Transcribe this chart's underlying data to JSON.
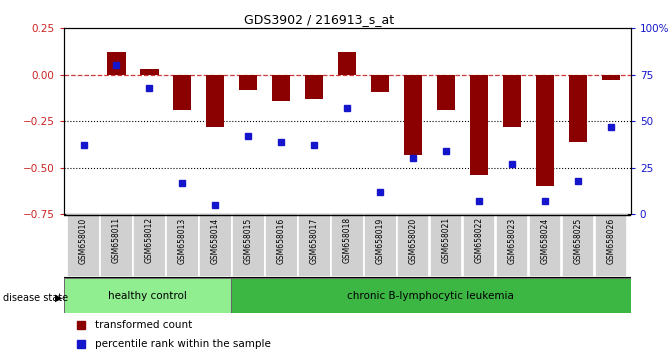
{
  "title": "GDS3902 / 216913_s_at",
  "samples": [
    "GSM658010",
    "GSM658011",
    "GSM658012",
    "GSM658013",
    "GSM658014",
    "GSM658015",
    "GSM658016",
    "GSM658017",
    "GSM658018",
    "GSM658019",
    "GSM658020",
    "GSM658021",
    "GSM658022",
    "GSM658023",
    "GSM658024",
    "GSM658025",
    "GSM658026"
  ],
  "bar_values": [
    0.0,
    0.12,
    0.03,
    -0.19,
    -0.28,
    -0.08,
    -0.14,
    -0.13,
    0.12,
    -0.09,
    -0.43,
    -0.19,
    -0.54,
    -0.28,
    -0.6,
    -0.36,
    -0.03
  ],
  "blue_values": [
    -0.38,
    0.05,
    -0.07,
    -0.58,
    -0.7,
    -0.33,
    -0.36,
    -0.38,
    -0.18,
    -0.63,
    -0.45,
    -0.41,
    -0.68,
    -0.48,
    -0.68,
    -0.57,
    -0.28
  ],
  "bar_color": "#8B0000",
  "blue_color": "#1515CC",
  "healthy_count": 5,
  "healthy_label": "healthy control",
  "disease_label": "chronic B-lymphocytic leukemia",
  "healthy_color": "#90EE90",
  "disease_color": "#3CB743",
  "ylim_left": [
    -0.75,
    0.25
  ],
  "ylim_right": [
    0,
    100
  ],
  "yticks_left": [
    -0.75,
    -0.5,
    -0.25,
    0.0,
    0.25
  ],
  "yticks_right": [
    0,
    25,
    50,
    75,
    100
  ],
  "legend_items": [
    "transformed count",
    "percentile rank within the sample"
  ],
  "bg_color": "#ffffff"
}
